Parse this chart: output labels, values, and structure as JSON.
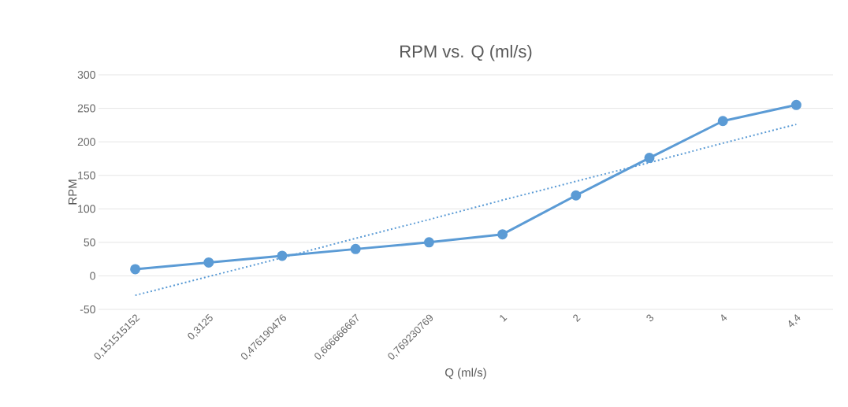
{
  "chart_data": {
    "type": "line",
    "title": "RPM vs. Q (ml/s)",
    "xlabel": "Q (ml/s)",
    "ylabel": "RPM",
    "categories": [
      "0,151515152",
      "0,3125",
      "0,476190476",
      "0,666666667",
      "0,769230769",
      "1",
      "2",
      "3",
      "4",
      "4,4"
    ],
    "series": [
      {
        "color": "#5b9bd5",
        "marker": "circle",
        "line_style": "solid",
        "values": [
          10,
          20,
          30,
          40,
          50,
          62,
          120,
          176,
          231,
          255
        ]
      },
      {
        "type": "line",
        "color": "#5b9bd5",
        "marker": "none",
        "line_style": "dotted",
        "values": [
          -29,
          -1,
          27,
          56,
          84,
          113,
          141,
          169,
          198,
          226
        ]
      }
    ],
    "ylim": [
      -50,
      300
    ],
    "yticks": [
      -50,
      0,
      50,
      100,
      150,
      200,
      250,
      300
    ],
    "grid": "y"
  }
}
